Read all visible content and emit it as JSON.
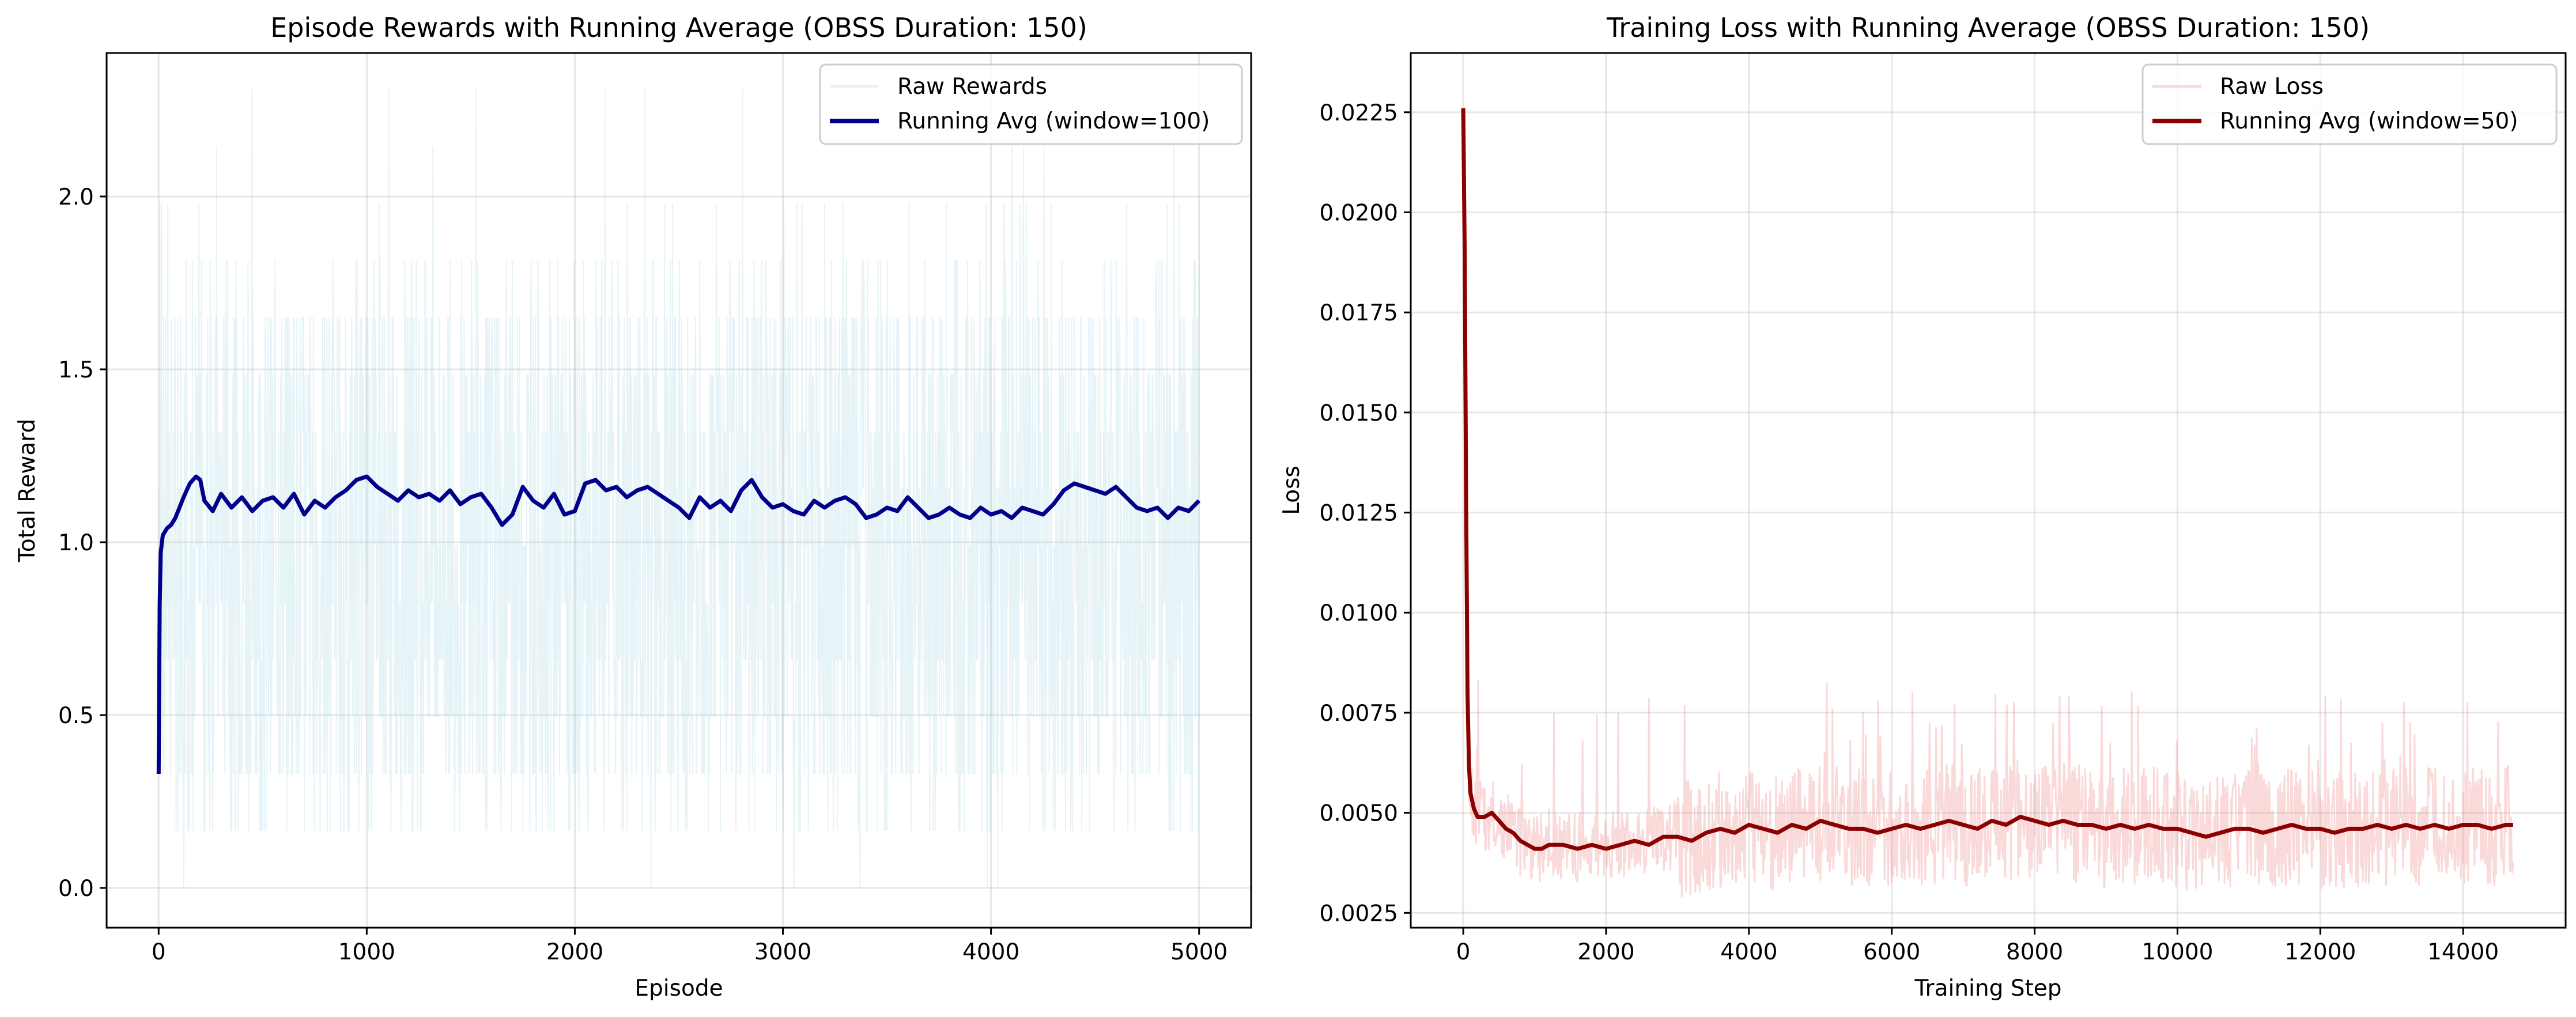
{
  "chart_data": [
    {
      "type": "line",
      "title": "Episode Rewards with Running Average (OBSS Duration: 150)",
      "xlabel": "Episode",
      "ylabel": "Total Reward",
      "xlim": [
        -250,
        5250
      ],
      "ylim": [
        -0.115,
        2.415
      ],
      "xticks": [
        0,
        1000,
        2000,
        3000,
        4000,
        5000
      ],
      "yticks": [
        0.0,
        0.5,
        1.0,
        1.5,
        2.0
      ],
      "xtick_labels": [
        "0",
        "1000",
        "2000",
        "3000",
        "4000",
        "5000"
      ],
      "ytick_labels": [
        "0.0",
        "0.5",
        "1.0",
        "1.5",
        "2.0"
      ],
      "grid": true,
      "legend_position": "top-right",
      "legend": [
        "Raw Rewards",
        "Running Avg (window=100)"
      ],
      "series": [
        {
          "name": "Raw Rewards",
          "color": "#add8e6",
          "alpha": 0.3,
          "band_low": 0.33,
          "band_high": 1.65,
          "x": [
            0,
            5000
          ]
        },
        {
          "name": "Running Avg (window=100)",
          "color": "#00008b",
          "x": [
            0,
            5,
            10,
            20,
            40,
            60,
            80,
            100,
            120,
            150,
            180,
            200,
            220,
            260,
            300,
            350,
            400,
            450,
            500,
            550,
            600,
            650,
            700,
            750,
            800,
            850,
            900,
            950,
            1000,
            1050,
            1100,
            1150,
            1200,
            1250,
            1300,
            1350,
            1400,
            1450,
            1500,
            1550,
            1600,
            1650,
            1700,
            1750,
            1800,
            1850,
            1900,
            1950,
            2000,
            2050,
            2100,
            2150,
            2200,
            2250,
            2300,
            2350,
            2400,
            2450,
            2500,
            2550,
            2600,
            2650,
            2700,
            2750,
            2800,
            2850,
            2900,
            2950,
            3000,
            3050,
            3100,
            3150,
            3200,
            3250,
            3300,
            3350,
            3400,
            3450,
            3500,
            3550,
            3600,
            3650,
            3700,
            3750,
            3800,
            3850,
            3900,
            3950,
            4000,
            4050,
            4100,
            4150,
            4200,
            4250,
            4300,
            4350,
            4400,
            4450,
            4500,
            4550,
            4600,
            4650,
            4700,
            4750,
            4800,
            4850,
            4900,
            4950,
            5000
          ],
          "values": [
            0.33,
            0.82,
            0.97,
            1.02,
            1.04,
            1.05,
            1.07,
            1.1,
            1.13,
            1.17,
            1.19,
            1.18,
            1.12,
            1.09,
            1.14,
            1.1,
            1.13,
            1.09,
            1.12,
            1.13,
            1.1,
            1.14,
            1.08,
            1.12,
            1.1,
            1.13,
            1.15,
            1.18,
            1.19,
            1.16,
            1.14,
            1.12,
            1.15,
            1.13,
            1.14,
            1.12,
            1.15,
            1.11,
            1.13,
            1.14,
            1.1,
            1.05,
            1.08,
            1.16,
            1.12,
            1.1,
            1.14,
            1.08,
            1.09,
            1.17,
            1.18,
            1.15,
            1.16,
            1.13,
            1.15,
            1.16,
            1.14,
            1.12,
            1.1,
            1.07,
            1.13,
            1.1,
            1.12,
            1.09,
            1.15,
            1.18,
            1.13,
            1.1,
            1.11,
            1.09,
            1.08,
            1.12,
            1.1,
            1.12,
            1.13,
            1.11,
            1.07,
            1.08,
            1.1,
            1.09,
            1.13,
            1.1,
            1.07,
            1.08,
            1.1,
            1.08,
            1.07,
            1.1,
            1.08,
            1.09,
            1.07,
            1.1,
            1.09,
            1.08,
            1.11,
            1.15,
            1.17,
            1.16,
            1.15,
            1.14,
            1.16,
            1.13,
            1.1,
            1.09,
            1.1,
            1.07,
            1.1,
            1.09,
            1.12
          ]
        }
      ]
    },
    {
      "type": "line",
      "title": "Training Loss with Running Average (OBSS Duration: 150)",
      "xlabel": "Training Step",
      "ylabel": "Loss",
      "xlim": [
        -735,
        15435
      ],
      "ylim": [
        0.00213,
        0.02398
      ],
      "xticks": [
        0,
        2000,
        4000,
        6000,
        8000,
        10000,
        12000,
        14000
      ],
      "yticks": [
        0.0025,
        0.005,
        0.0075,
        0.01,
        0.0125,
        0.015,
        0.0175,
        0.02,
        0.0225
      ],
      "xtick_labels": [
        "0",
        "2000",
        "4000",
        "6000",
        "8000",
        "10000",
        "12000",
        "14000"
      ],
      "ytick_labels": [
        "0.0025",
        "0.0050",
        "0.0075",
        "0.0100",
        "0.0125",
        "0.0150",
        "0.0175",
        "0.0200",
        "0.0225"
      ],
      "grid": true,
      "legend_position": "top-right",
      "legend": [
        "Raw Loss",
        "Running Avg (window=50)"
      ],
      "series": [
        {
          "name": "Raw Loss",
          "color": "#f08080",
          "alpha": 0.3,
          "x": [
            0,
            14700
          ]
        },
        {
          "name": "Running Avg (window=50)",
          "color": "#8b0000",
          "x": [
            0,
            20,
            40,
            60,
            80,
            100,
            150,
            200,
            300,
            400,
            500,
            600,
            700,
            800,
            900,
            1000,
            1100,
            1200,
            1400,
            1600,
            1800,
            2000,
            2200,
            2400,
            2600,
            2800,
            3000,
            3200,
            3400,
            3600,
            3800,
            4000,
            4200,
            4400,
            4600,
            4800,
            5000,
            5200,
            5400,
            5600,
            5800,
            6000,
            6200,
            6400,
            6600,
            6800,
            7000,
            7200,
            7400,
            7600,
            7800,
            8000,
            8200,
            8400,
            8600,
            8800,
            9000,
            9200,
            9400,
            9600,
            9800,
            10000,
            10200,
            10400,
            10600,
            10800,
            11000,
            11200,
            11400,
            11600,
            11800,
            12000,
            12200,
            12400,
            12600,
            12800,
            13000,
            13200,
            13400,
            13600,
            13800,
            14000,
            14200,
            14400,
            14600,
            14700
          ],
          "values": [
            0.0226,
            0.019,
            0.013,
            0.008,
            0.0062,
            0.0055,
            0.0051,
            0.0049,
            0.0049,
            0.005,
            0.0048,
            0.0046,
            0.0045,
            0.0043,
            0.0042,
            0.0041,
            0.0041,
            0.0042,
            0.0042,
            0.0041,
            0.0042,
            0.0041,
            0.0042,
            0.0043,
            0.0042,
            0.0044,
            0.0044,
            0.0043,
            0.0045,
            0.0046,
            0.0045,
            0.0047,
            0.0046,
            0.0045,
            0.0047,
            0.0046,
            0.0048,
            0.0047,
            0.0046,
            0.0046,
            0.0045,
            0.0046,
            0.0047,
            0.0046,
            0.0047,
            0.0048,
            0.0047,
            0.0046,
            0.0048,
            0.0047,
            0.0049,
            0.0048,
            0.0047,
            0.0048,
            0.0047,
            0.0047,
            0.0046,
            0.0047,
            0.0046,
            0.0047,
            0.0046,
            0.0046,
            0.0045,
            0.0044,
            0.0045,
            0.0046,
            0.0046,
            0.0045,
            0.0046,
            0.0047,
            0.0046,
            0.0046,
            0.0045,
            0.0046,
            0.0046,
            0.0047,
            0.0046,
            0.0047,
            0.0046,
            0.0047,
            0.0046,
            0.0047,
            0.0047,
            0.0046,
            0.0047,
            0.0047
          ]
        }
      ]
    }
  ]
}
